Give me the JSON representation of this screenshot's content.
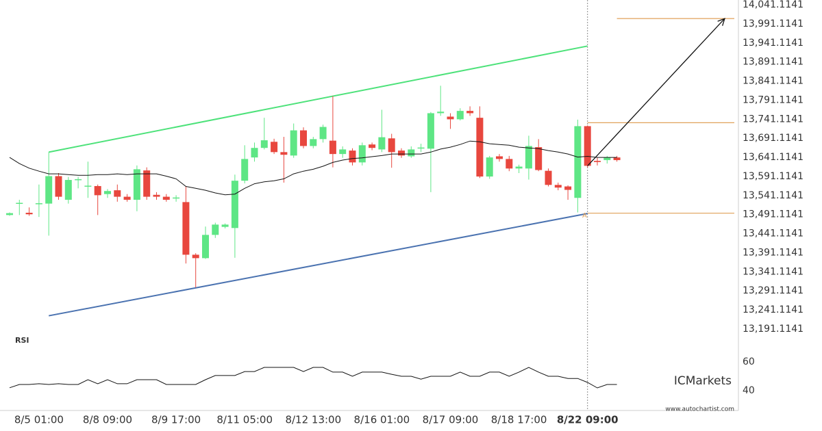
{
  "chart_data": {
    "type": "candlestick",
    "categories": [
      null,
      null,
      null,
      "8/5 01:00",
      null,
      null,
      null,
      null,
      null,
      null,
      "8/8 09:00",
      null,
      null,
      null,
      null,
      null,
      null,
      "8/9 17:00",
      null,
      null,
      null,
      null,
      null,
      null,
      "8/11 05:00",
      null,
      null,
      null,
      null,
      null,
      null,
      "8/12 13:00",
      null,
      null,
      null,
      null,
      null,
      null,
      "8/16 01:00",
      null,
      null,
      null,
      null,
      null,
      null,
      "8/17 09:00",
      null,
      null,
      null,
      null,
      null,
      null,
      "8/18 17:00",
      null,
      null,
      null,
      null,
      null,
      null,
      "8/22 09:00",
      null,
      null,
      null
    ],
    "open": [
      13490,
      13520,
      13496,
      13520,
      13520,
      13592,
      13530,
      13582,
      13566,
      13566,
      13545,
      13555,
      13538,
      13530,
      13607,
      13543,
      13538,
      13534,
      13524,
      13386,
      13377,
      13438,
      13459,
      13456,
      13580,
      13641,
      13666,
      13682,
      13655,
      13646,
      13712,
      13671,
      13689,
      13685,
      13650,
      13659,
      13628,
      13675,
      13662,
      13691,
      13659,
      13644,
      13666,
      13664,
      13757,
      13748,
      13741,
      13763,
      13745,
      13591,
      13644,
      13637,
      13612,
      13612,
      13668,
      13606,
      13569,
      13565,
      13535,
      13723,
      13632,
      13634,
      13641
    ],
    "high": [
      13497,
      13530,
      13510,
      13570,
      13655,
      13600,
      13590,
      13590,
      13630,
      13570,
      13558,
      13570,
      13545,
      13620,
      13615,
      13550,
      13545,
      13542,
      13565,
      13390,
      13460,
      13470,
      13468,
      13596,
      13673,
      13680,
      13745,
      13690,
      13695,
      13730,
      13720,
      13695,
      13727,
      13802,
      13670,
      13665,
      13680,
      13680,
      13766,
      13703,
      13665,
      13670,
      13677,
      13760,
      13829,
      13757,
      13770,
      13775,
      13775,
      13645,
      13650,
      13645,
      13622,
      13698,
      13689,
      13612,
      13575,
      13568,
      13740,
      13725,
      13640,
      13645,
      13645
    ],
    "low": [
      13488,
      13490,
      13488,
      13485,
      13436,
      13530,
      13520,
      13560,
      13535,
      13490,
      13535,
      13525,
      13525,
      13500,
      13530,
      13530,
      13525,
      13525,
      13363,
      13300,
      13375,
      13430,
      13455,
      13378,
      13573,
      13630,
      13662,
      13650,
      13575,
      13640,
      13665,
      13665,
      13680,
      13615,
      13640,
      13620,
      13620,
      13660,
      13655,
      13614,
      13640,
      13640,
      13655,
      13550,
      13750,
      13716,
      13738,
      13750,
      13587,
      13585,
      13630,
      13605,
      13600,
      13583,
      13605,
      13565,
      13555,
      13530,
      13497,
      13615,
      13620,
      13625,
      13630
    ],
    "close": [
      13495,
      13522,
      13492,
      13521,
      13592,
      13538,
      13582,
      13584,
      13567,
      13542,
      13553,
      13538,
      13530,
      13610,
      13538,
      13538,
      13530,
      13536,
      13386,
      13377,
      13438,
      13465,
      13465,
      13580,
      13637,
      13666,
      13686,
      13655,
      13648,
      13712,
      13671,
      13689,
      13721,
      13650,
      13662,
      13628,
      13673,
      13666,
      13694,
      13655,
      13646,
      13662,
      13667,
      13757,
      13761,
      13741,
      13763,
      13757,
      13591,
      13641,
      13637,
      13612,
      13617,
      13671,
      13608,
      13569,
      13562,
      13556,
      13723,
      13619,
      13629,
      13641,
      13634
    ],
    "up_color": "#5ee685",
    "down_color": "#e8473e",
    "ylim": [
      13175,
      14053.7
    ],
    "yticks": [
      {
        "value": 14041.1141,
        "label": "14,041.1141"
      },
      {
        "value": 13991.1141,
        "label": "13,991.1141"
      },
      {
        "value": 13941.1141,
        "label": "13,941.1141"
      },
      {
        "value": 13891.1141,
        "label": "13,891.1141"
      },
      {
        "value": 13841.1141,
        "label": "13,841.1141"
      },
      {
        "value": 13791.1141,
        "label": "13,791.1141"
      },
      {
        "value": 13741.1141,
        "label": "13,741.1141"
      },
      {
        "value": 13691.1141,
        "label": "13,691.1141"
      },
      {
        "value": 13641.1141,
        "label": "13,641.1141"
      },
      {
        "value": 13591.1141,
        "label": "13,591.1141"
      },
      {
        "value": 13541.1141,
        "label": "13,541.1141"
      },
      {
        "value": 13491.1141,
        "label": "13,491.1141"
      },
      {
        "value": 13441.1141,
        "label": "13,441.1141"
      },
      {
        "value": 13391.1141,
        "label": "13,391.1141"
      },
      {
        "value": 13341.1141,
        "label": "13,341.1141"
      },
      {
        "value": 13291.1141,
        "label": "13,291.1141"
      },
      {
        "value": 13241.1141,
        "label": "13,241.1141"
      },
      {
        "value": 13191.1141,
        "label": "13,191.1141"
      }
    ],
    "moving_average": {
      "color": "#111111",
      "values": [
        13641,
        13625,
        13613,
        13605,
        13598,
        13598,
        13596,
        13594,
        13594,
        13596,
        13596,
        13598,
        13596,
        13598,
        13598,
        13598,
        13592,
        13585,
        13565,
        13560,
        13555,
        13548,
        13543,
        13545,
        13560,
        13572,
        13577,
        13580,
        13585,
        13598,
        13605,
        13610,
        13618,
        13628,
        13634,
        13638,
        13640,
        13643,
        13646,
        13650,
        13650,
        13650,
        13650,
        13655,
        13663,
        13668,
        13675,
        13684,
        13682,
        13677,
        13675,
        13673,
        13668,
        13666,
        13664,
        13659,
        13655,
        13650,
        13642,
        13644,
        13641,
        13641,
        13641
      ]
    },
    "pattern_lines": [
      {
        "color": "#4de27a",
        "x": [
          4,
          59
        ],
        "y": [
          13655,
          13933
        ]
      },
      {
        "color": "#4a72b0",
        "x": [
          4,
          59
        ],
        "y": [
          13226,
          13494
        ]
      }
    ],
    "levels": [
      {
        "value": 14005,
        "from": 62
      },
      {
        "value": 13732,
        "from": 59
      },
      {
        "value": 13495,
        "from": 59
      }
    ],
    "level_color": "#e0a15a",
    "arrow": {
      "x": [
        59,
        73
      ],
      "y": [
        13619,
        14005
      ]
    },
    "annotation": {
      "text": "A",
      "x": 58.7,
      "y": 13489
    },
    "event_time": "8/22 09:00",
    "rsi": {
      "label": "RSI",
      "values": [
        42,
        44.3,
        44.3,
        44.8,
        44.3,
        44.8,
        44.3,
        44.3,
        47.6,
        44.8,
        47.6,
        44.8,
        44.8,
        47.6,
        47.6,
        47.6,
        44.3,
        44.3,
        44.3,
        44.3,
        47.6,
        50.5,
        50.5,
        50.5,
        53.3,
        53.3,
        56.2,
        56.2,
        56.2,
        56.2,
        53.3,
        56.2,
        56.2,
        52.9,
        52.9,
        50,
        52.9,
        52.9,
        52.9,
        51.4,
        50,
        50,
        48,
        50,
        50,
        50,
        52.9,
        50,
        50,
        52.9,
        52.9,
        50,
        52.9,
        56.2,
        52.9,
        50,
        50,
        48.5,
        48.5,
        45.7,
        41.9,
        44.3,
        44.3
      ],
      "ylim": [
        26.2,
        73.8
      ],
      "yticks": [
        40,
        60
      ]
    },
    "watermark": "ICMarkets",
    "source": "www.autochartist.com"
  }
}
